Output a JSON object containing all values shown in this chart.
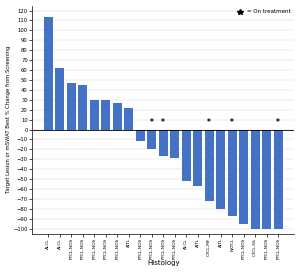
{
  "categories": [
    "ALCL",
    "ALCL",
    "PTCL-NOS",
    "PTCL-NOS",
    "PTCL-NOS",
    "PTCL-NOS",
    "PTCL-NOS",
    "AITL",
    "PTCL-NOS",
    "PTCL-NOS",
    "PTCL-NOS",
    "PTCL-NOS",
    "ALCL",
    "AITL",
    "CTCL-MF",
    "AITL",
    "NKTCL",
    "PTCL-NOS",
    "CTCL-SS",
    "PTCL-NOS",
    "PTCL-NOS"
  ],
  "values": [
    113,
    62,
    47,
    45,
    30,
    30,
    27,
    22,
    -12,
    -20,
    -27,
    -29,
    -52,
    -57,
    -72,
    -80,
    -87,
    -95,
    -100,
    -100,
    -100
  ],
  "on_treatment": [
    false,
    false,
    false,
    false,
    false,
    false,
    false,
    false,
    false,
    true,
    true,
    false,
    false,
    false,
    true,
    false,
    true,
    false,
    false,
    false,
    true
  ],
  "bar_color": "#4472C4",
  "xlabel": "Histology",
  "ylabel": "Target Lesion or mSWAT Best % Change from Screening",
  "ylim": [
    -105,
    125
  ],
  "yticks": [
    -100,
    -90,
    -80,
    -70,
    -60,
    -50,
    -40,
    -30,
    -20,
    -10,
    0,
    10,
    20,
    30,
    40,
    50,
    60,
    70,
    80,
    90,
    100,
    110,
    120
  ],
  "legend_label": "= On treatment",
  "background_color": "#ffffff"
}
